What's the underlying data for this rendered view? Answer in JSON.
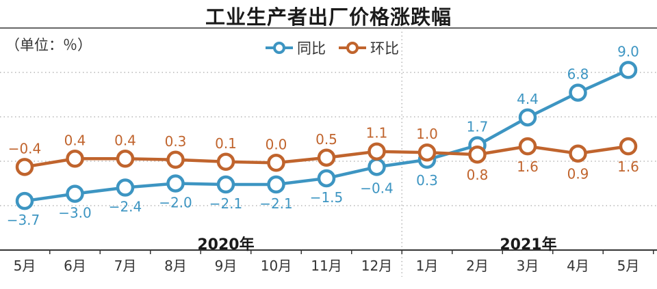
{
  "title": "工业生产者出厂价格涨跌幅",
  "unit_label": "（单位：％）",
  "colors": {
    "yoy": "#3d95c2",
    "mom": "#c0642d",
    "grid": "#cfcfcf",
    "axis": "#333333",
    "dots": "#b5b5b5"
  },
  "chart_data": {
    "type": "line",
    "title": "工业生产者出厂价格涨跌幅",
    "ylabel": "单位：％",
    "categories": [
      "5月",
      "6月",
      "7月",
      "8月",
      "9月",
      "10月",
      "11月",
      "12月",
      "1月",
      "2月",
      "3月",
      "4月",
      "5月"
    ],
    "year_groups": [
      {
        "label": "2020年",
        "start": 0,
        "end": 7
      },
      {
        "label": "2021年",
        "start": 8,
        "end": 12
      }
    ],
    "series": [
      {
        "name": "同比",
        "key": "yoy",
        "values": [
          -3.7,
          -3.0,
          -2.4,
          -2.0,
          -2.1,
          -2.1,
          -1.5,
          -0.4,
          0.3,
          1.7,
          4.4,
          6.8,
          9.0
        ],
        "labels": [
          "−3.7",
          "−3.0",
          "−2.4",
          "−2.0",
          "−2.1",
          "−2.1",
          "−1.5",
          "−0.4",
          "0.3",
          "1.7",
          "4.4",
          "6.8",
          "9.0"
        ]
      },
      {
        "name": "环比",
        "key": "mom",
        "values": [
          -0.4,
          0.4,
          0.4,
          0.3,
          0.1,
          0.0,
          0.5,
          1.1,
          1.0,
          0.8,
          1.6,
          0.9,
          1.6
        ],
        "labels": [
          "−0.4",
          "0.4",
          "0.4",
          "0.3",
          "0.1",
          "0.0",
          "0.5",
          "1.1",
          "1.0",
          "0.8",
          "1.6",
          "0.9",
          "1.6"
        ]
      }
    ],
    "ylim": [
      -4.5,
      10
    ],
    "grid": true
  }
}
